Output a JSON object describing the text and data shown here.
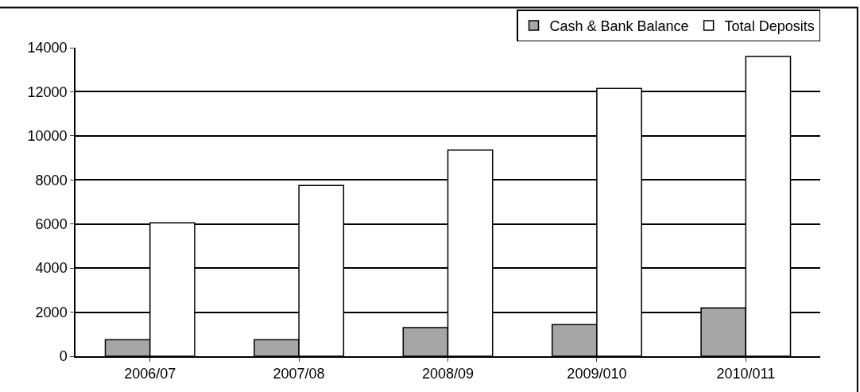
{
  "chart_data": {
    "type": "bar",
    "categories": [
      "2006/07",
      "2007/08",
      "2008/09",
      "2009/010",
      "2010/011"
    ],
    "series": [
      {
        "name": "Cash & Bank Balance",
        "color": "#a6a6a6",
        "values": [
          750,
          750,
          1300,
          1430,
          2190
        ]
      },
      {
        "name": "Total Deposits",
        "color": "#ffffff",
        "values": [
          6050,
          7750,
          9350,
          12150,
          13600
        ]
      }
    ],
    "ylim": [
      0,
      14000
    ],
    "yticks": [
      0,
      2000,
      4000,
      6000,
      8000,
      10000,
      12000,
      14000
    ],
    "grid": "y",
    "legend": "top right"
  }
}
